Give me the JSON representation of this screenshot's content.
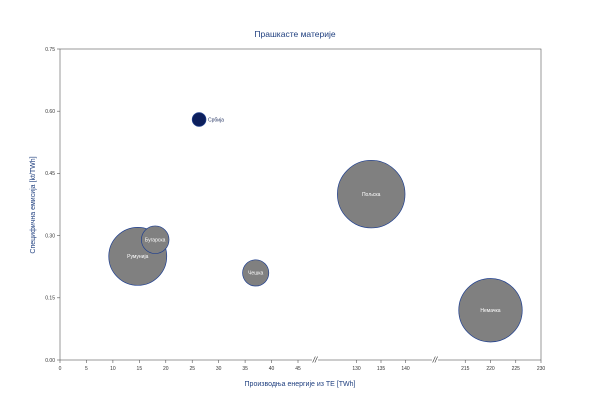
{
  "chart_data": {
    "type": "scatter",
    "title": "Прашкасте материје",
    "xlabel": "Производња енергије из ТЕ [TWh]",
    "ylabel": "Специфична емисија [kt/TWh]",
    "ylim": [
      0,
      0.75
    ],
    "y_ticks": [
      "0.00",
      "0.15",
      "0.30",
      "0.45",
      "0.60",
      "0.75"
    ],
    "x_segments": [
      {
        "range": [
          0,
          45
        ],
        "ticks": [
          "0",
          "5",
          "10",
          "15",
          "20",
          "25",
          "30",
          "35",
          "40",
          "45"
        ]
      },
      {
        "range": [
          125,
          145
        ],
        "ticks": [
          "130",
          "135",
          "140"
        ]
      },
      {
        "range": [
          210,
          230
        ],
        "ticks": [
          "215",
          "220",
          "225",
          "230"
        ]
      }
    ],
    "axis_break_marker": "//",
    "grid": false,
    "legend": "none",
    "points": [
      {
        "label": "Србија",
        "x": 26.3,
        "y": 0.58,
        "r": 1.0,
        "color": "#0d1f5c"
      },
      {
        "label": "Румунија",
        "x": 14.7,
        "y": 0.25,
        "r": 4.2,
        "color": "#808080"
      },
      {
        "label": "Бугарска",
        "x": 18.0,
        "y": 0.29,
        "r": 2.0,
        "color": "#808080"
      },
      {
        "label": "Чешка",
        "x": 37.0,
        "y": 0.21,
        "r": 1.9,
        "color": "#808080"
      },
      {
        "label": "Пољска",
        "x": 133.0,
        "y": 0.4,
        "r": 4.9,
        "color": "#808080"
      },
      {
        "label": "Немачка",
        "x": 220.0,
        "y": 0.12,
        "r": 4.6,
        "color": "#808080"
      }
    ]
  }
}
